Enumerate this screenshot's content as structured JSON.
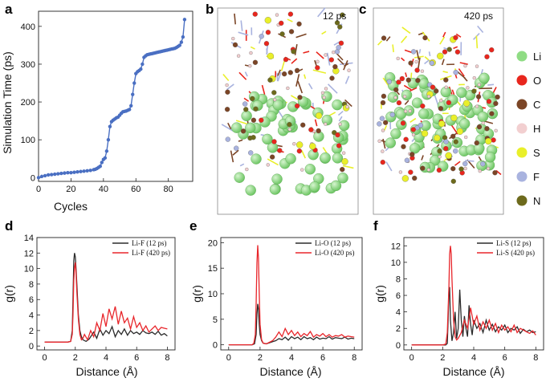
{
  "panels": {
    "a": "a",
    "b": "b",
    "c": "c",
    "d": "d",
    "e": "e",
    "f": "f"
  },
  "snapshots": {
    "b_time": "12 ps",
    "c_time": "420 ps"
  },
  "atom_key": [
    {
      "label": "Li",
      "color": "#8fdc84"
    },
    {
      "label": "O",
      "color": "#e8261d"
    },
    {
      "label": "C",
      "color": "#7b4526"
    },
    {
      "label": "H",
      "color": "#f2cfd0"
    },
    {
      "label": "S",
      "color": "#e9ef2a"
    },
    {
      "label": "F",
      "color": "#a9b3df"
    },
    {
      "label": "N",
      "color": "#6d6a1c"
    }
  ],
  "chart_data": [
    {
      "id": "a",
      "type": "line",
      "xlabel": "Cycles",
      "ylabel": "Simulation Time (ps)",
      "xlim": [
        0,
        95
      ],
      "ylim": [
        -10,
        440
      ],
      "xticks": [
        0,
        20,
        40,
        60,
        80
      ],
      "yticks": [
        0,
        100,
        200,
        300,
        400
      ],
      "series": [
        {
          "name": "simulation time",
          "color": "#4a6fc2",
          "x": [
            0,
            2,
            4,
            6,
            8,
            10,
            12,
            14,
            16,
            18,
            20,
            22,
            24,
            26,
            28,
            30,
            32,
            34,
            35,
            36,
            37,
            38,
            39,
            40,
            41,
            42,
            43,
            44,
            45,
            46,
            47,
            48,
            49,
            50,
            51,
            52,
            53,
            54,
            55,
            56,
            57,
            58,
            59,
            60,
            61,
            62,
            63,
            64,
            65,
            66,
            67,
            68,
            69,
            70,
            71,
            72,
            73,
            74,
            75,
            76,
            77,
            78,
            79,
            80,
            81,
            82,
            83,
            84,
            85,
            86,
            87,
            88,
            89,
            90
          ],
          "y": [
            0,
            3,
            5,
            7,
            8,
            9,
            10,
            11,
            12,
            13,
            13,
            14,
            15,
            16,
            17,
            18,
            19,
            21,
            22,
            24,
            27,
            30,
            40,
            48,
            52,
            70,
            100,
            135,
            148,
            152,
            155,
            158,
            160,
            165,
            170,
            174,
            175,
            176,
            178,
            180,
            190,
            220,
            250,
            275,
            280,
            283,
            287,
            300,
            318,
            322,
            325,
            326,
            327,
            328,
            329,
            330,
            331,
            332,
            333,
            334,
            335,
            336,
            337,
            338,
            339,
            340,
            341,
            342,
            344,
            347,
            350,
            358,
            372,
            418
          ]
        }
      ]
    },
    {
      "id": "d",
      "type": "line",
      "xlabel": "Distance (Å)",
      "ylabel": "g(r)",
      "xlim": [
        -0.5,
        8.5
      ],
      "ylim": [
        -0.5,
        14
      ],
      "xticks": [
        0,
        2,
        4,
        6,
        8
      ],
      "yticks": [
        0,
        2,
        4,
        6,
        8,
        10,
        12,
        14
      ],
      "series": [
        {
          "name": "Li-F (12 ps)",
          "color": "#2b2b2b",
          "x": [
            0,
            1.5,
            1.7,
            1.8,
            1.85,
            1.9,
            1.95,
            2.0,
            2.05,
            2.1,
            2.2,
            2.3,
            2.4,
            2.5,
            2.7,
            2.9,
            3.0,
            3.2,
            3.4,
            3.6,
            3.8,
            4.0,
            4.2,
            4.4,
            4.6,
            4.8,
            5.0,
            5.2,
            5.4,
            5.6,
            5.8,
            6.0,
            6.2,
            6.4,
            6.6,
            6.8,
            7.0,
            7.2,
            7.4,
            7.6,
            7.8,
            8.0
          ],
          "y": [
            0.5,
            0.5,
            0.6,
            2.0,
            6.0,
            11.0,
            12.0,
            11.5,
            10.0,
            8.0,
            4.0,
            2.0,
            1.2,
            0.8,
            0.6,
            0.9,
            1.2,
            1.8,
            1.0,
            2.2,
            1.4,
            2.0,
            1.6,
            2.5,
            1.2,
            2.0,
            1.5,
            2.2,
            1.4,
            2.0,
            1.6,
            1.8,
            1.5,
            2.0,
            1.7,
            1.6,
            1.8,
            1.5,
            1.9,
            1.4,
            1.6,
            1.3
          ]
        },
        {
          "name": "Li-F (420 ps)",
          "color": "#e8262b",
          "x": [
            0,
            1.5,
            1.7,
            1.8,
            1.85,
            1.9,
            1.95,
            2.0,
            2.05,
            2.1,
            2.2,
            2.3,
            2.4,
            2.5,
            2.6,
            2.8,
            3.0,
            3.2,
            3.4,
            3.6,
            3.8,
            4.0,
            4.2,
            4.4,
            4.6,
            4.8,
            5.0,
            5.2,
            5.4,
            5.6,
            5.8,
            6.0,
            6.2,
            6.4,
            6.6,
            6.8,
            7.0,
            7.2,
            7.4,
            7.6,
            7.8,
            8.0
          ],
          "y": [
            0.5,
            0.5,
            0.6,
            1.5,
            4.0,
            8.5,
            10.0,
            10.8,
            9.5,
            7.0,
            3.5,
            1.5,
            0.8,
            1.0,
            1.5,
            0.8,
            2.0,
            1.2,
            3.0,
            2.0,
            4.2,
            2.5,
            4.8,
            3.5,
            5.1,
            2.8,
            4.5,
            3.0,
            3.6,
            2.2,
            3.8,
            2.4,
            3.0,
            2.0,
            2.6,
            1.8,
            2.2,
            2.6,
            2.0,
            2.4,
            2.3,
            2.2
          ]
        }
      ]
    },
    {
      "id": "e",
      "type": "line",
      "xlabel": "Distance (Å)",
      "ylabel": "g(r)",
      "xlim": [
        -0.5,
        8.5
      ],
      "ylim": [
        -1,
        21
      ],
      "xticks": [
        0,
        2,
        4,
        6,
        8
      ],
      "yticks": [
        0,
        5,
        10,
        15,
        20
      ],
      "series": [
        {
          "name": "Li-O (12 ps)",
          "color": "#2b2b2b",
          "x": [
            0,
            1.5,
            1.65,
            1.75,
            1.8,
            1.85,
            1.9,
            1.95,
            2.0,
            2.1,
            2.2,
            2.4,
            2.6,
            2.8,
            3.0,
            3.2,
            3.4,
            3.6,
            3.8,
            4.0,
            4.2,
            4.4,
            4.6,
            4.8,
            5.0,
            5.2,
            5.4,
            5.6,
            5.8,
            6.0,
            6.2,
            6.4,
            6.6,
            6.8,
            7.0,
            7.2,
            7.4,
            7.6,
            7.8,
            8.0
          ],
          "y": [
            0,
            0,
            0.2,
            2.0,
            6.0,
            8.0,
            7.0,
            4.0,
            2.0,
            0.8,
            0.3,
            0.2,
            0.4,
            0.6,
            0.8,
            1.2,
            1.0,
            1.5,
            0.9,
            1.6,
            1.2,
            1.5,
            1.0,
            1.6,
            1.2,
            1.4,
            1.0,
            1.5,
            1.1,
            1.3,
            1.2,
            1.6,
            1.1,
            1.4,
            1.3,
            1.2,
            1.5,
            1.1,
            1.3,
            1.2
          ]
        },
        {
          "name": "Li-O (420 ps)",
          "color": "#e8262b",
          "x": [
            0,
            1.5,
            1.6,
            1.7,
            1.75,
            1.8,
            1.85,
            1.9,
            1.95,
            2.0,
            2.1,
            2.2,
            2.4,
            2.6,
            2.8,
            3.0,
            3.2,
            3.4,
            3.6,
            3.8,
            4.0,
            4.2,
            4.4,
            4.6,
            4.8,
            5.0,
            5.2,
            5.4,
            5.6,
            5.8,
            6.0,
            6.2,
            6.4,
            6.6,
            6.8,
            7.0,
            7.2,
            7.4,
            7.6,
            7.8,
            8.0
          ],
          "y": [
            0,
            0,
            0.3,
            2.0,
            8.0,
            16.0,
            19.5,
            17.0,
            10.0,
            4.0,
            1.0,
            0.3,
            0.2,
            0.5,
            0.8,
            1.5,
            2.5,
            1.6,
            3.2,
            2.0,
            2.8,
            1.8,
            2.5,
            1.6,
            2.2,
            1.8,
            2.6,
            1.5,
            2.0,
            1.7,
            2.2,
            1.6,
            2.0,
            1.5,
            1.8,
            1.7,
            2.0,
            1.5,
            1.7,
            1.6,
            1.5
          ]
        }
      ]
    },
    {
      "id": "f",
      "type": "line",
      "xlabel": "Distance (Å)",
      "ylabel": "g(r)",
      "xlim": [
        -0.5,
        8.5
      ],
      "ylim": [
        -0.6,
        13
      ],
      "xticks": [
        0,
        2,
        4,
        6,
        8
      ],
      "yticks": [
        0,
        2,
        4,
        6,
        8,
        10,
        12
      ],
      "series": [
        {
          "name": "Li-S (12 ps)",
          "color": "#2b2b2b",
          "x": [
            0,
            2.0,
            2.2,
            2.3,
            2.35,
            2.4,
            2.45,
            2.5,
            2.6,
            2.7,
            2.8,
            2.9,
            3.0,
            3.1,
            3.2,
            3.3,
            3.4,
            3.5,
            3.6,
            3.7,
            3.8,
            3.9,
            4.0,
            4.2,
            4.4,
            4.6,
            4.8,
            5.0,
            5.2,
            5.4,
            5.6,
            5.8,
            6.0,
            6.2,
            6.4,
            6.6,
            6.8,
            7.0,
            7.2,
            7.4,
            7.6,
            7.8,
            8.0
          ],
          "y": [
            0,
            0,
            0,
            0.2,
            3.0,
            6.5,
            7.0,
            3.0,
            0.5,
            1.5,
            4.0,
            0.8,
            2.0,
            6.7,
            3.0,
            1.0,
            3.5,
            2.0,
            1.0,
            4.8,
            2.5,
            1.2,
            3.0,
            2.0,
            2.6,
            1.5,
            3.0,
            1.8,
            2.5,
            1.6,
            2.2,
            1.8,
            2.4,
            1.5,
            2.0,
            1.8,
            2.2,
            1.4,
            1.9,
            1.6,
            1.8,
            1.5,
            1.6
          ]
        },
        {
          "name": "Li-S (420 ps)",
          "color": "#e8262b",
          "x": [
            0,
            2.0,
            2.2,
            2.3,
            2.4,
            2.45,
            2.5,
            2.55,
            2.6,
            2.7,
            2.8,
            2.9,
            3.0,
            3.2,
            3.4,
            3.6,
            3.8,
            4.0,
            4.2,
            4.4,
            4.6,
            4.8,
            5.0,
            5.2,
            5.4,
            5.6,
            5.8,
            6.0,
            6.2,
            6.4,
            6.6,
            6.8,
            7.0,
            7.2,
            7.4,
            7.6,
            7.8,
            8.0
          ],
          "y": [
            0,
            0,
            0.1,
            1.5,
            7.0,
            11.0,
            12.0,
            11.0,
            8.0,
            3.0,
            1.0,
            0.6,
            0.8,
            1.5,
            3.0,
            2.0,
            4.5,
            2.5,
            3.5,
            1.8,
            2.8,
            2.0,
            3.0,
            1.8,
            2.6,
            1.5,
            2.4,
            1.8,
            2.2,
            1.6,
            2.4,
            1.5,
            2.0,
            1.8,
            1.6,
            1.4,
            1.7,
            1.2
          ]
        }
      ]
    }
  ]
}
